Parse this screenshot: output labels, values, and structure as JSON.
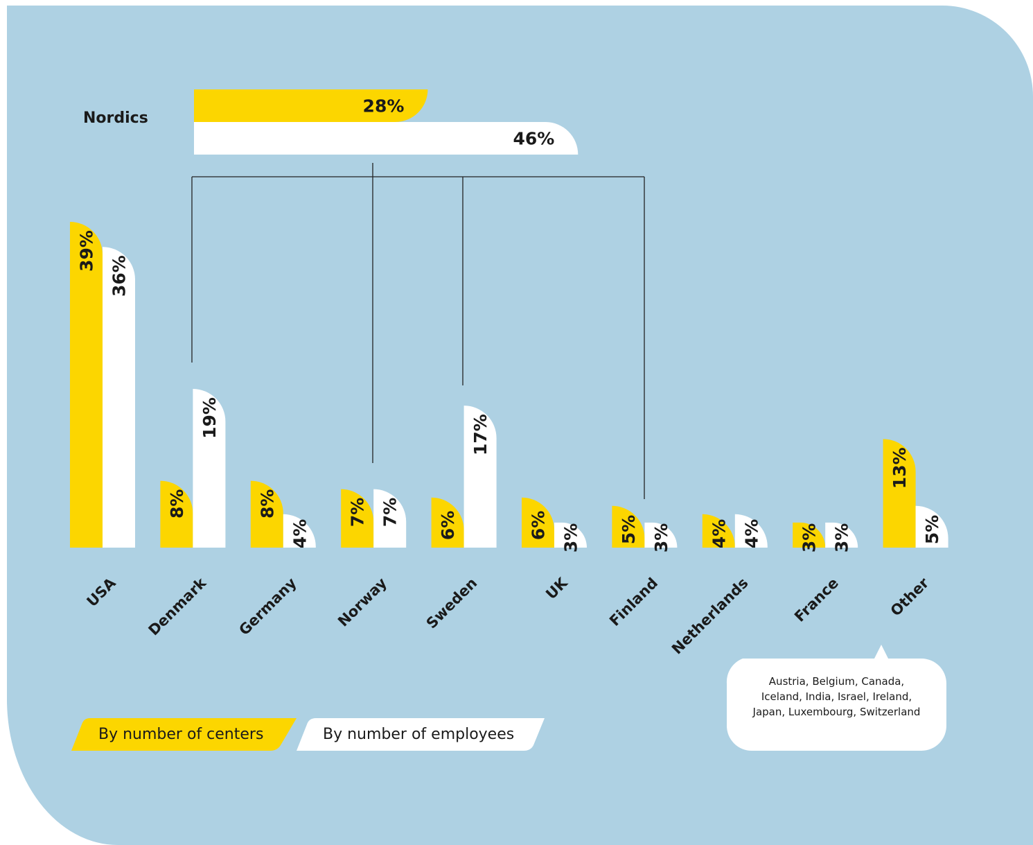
{
  "chart_data": [
    {
      "type": "hbar",
      "categories": [
        "Nordics"
      ],
      "series": [
        {
          "color": "#fcd600",
          "values": [
            28
          ],
          "value_labels": [
            "28%"
          ]
        },
        {
          "color": "#ffffff",
          "values": [
            46
          ],
          "value_labels": [
            "46%"
          ]
        }
      ]
    },
    {
      "type": "bar",
      "categories": [
        "USA",
        "Denmark",
        "Germany",
        "Norway",
        "Sweden",
        "UK",
        "Finland",
        "Netherlands",
        "France",
        "Other"
      ],
      "series": [
        {
          "name": "By number of centers",
          "color": "#fcd600",
          "values": [
            39,
            8,
            8,
            7,
            6,
            6,
            5,
            4,
            3,
            13
          ],
          "value_labels": [
            "39%",
            "8%",
            "8%",
            "7%",
            "6%",
            "6%",
            "5%",
            "4%",
            "3%",
            "13%"
          ]
        },
        {
          "name": "By number of employees",
          "color": "#ffffff",
          "values": [
            36,
            19,
            4,
            7,
            17,
            3,
            3,
            4,
            3,
            5
          ],
          "value_labels": [
            "36%",
            "19%",
            "4%",
            "7%",
            "17%",
            "3%",
            "3%",
            "4%",
            "3%",
            "5%"
          ]
        }
      ],
      "annotation": "Austria, Belgium, Canada, Iceland, India, Israel, Ireland, Japan, Luxembourg, Switzerland"
    }
  ]
}
